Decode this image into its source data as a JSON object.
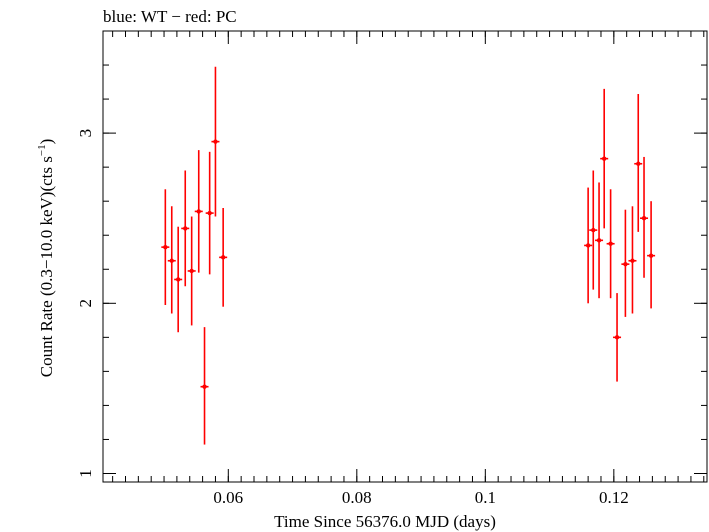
{
  "chart_data": {
    "type": "scatter",
    "title": "blue: WT − red: PC",
    "xlabel": "Time Since 56376.0 MJD (days)",
    "ylabel_main": "Count Rate (0.3−10.0 keV)(cts s",
    "ylabel_sup": "−1",
    "ylabel_end": ")",
    "xlim": [
      0.0405,
      0.1345
    ],
    "ylim": [
      0.95,
      3.6
    ],
    "x_ticks": [
      {
        "value": 0.06,
        "label": "0.06"
      },
      {
        "value": 0.08,
        "label": "0.08"
      },
      {
        "value": 0.1,
        "label": "0.1"
      },
      {
        "value": 0.12,
        "label": "0.12"
      }
    ],
    "x_minor_step": 0.002,
    "y_ticks": [
      {
        "value": 1,
        "label": "1"
      },
      {
        "value": 2,
        "label": "2"
      },
      {
        "value": 3,
        "label": "3"
      }
    ],
    "y_minor_step": 0.2,
    "legend": "title",
    "series": [
      {
        "name": "PC",
        "color": "#ff0000",
        "points": [
          {
            "x": 0.0502,
            "y": 2.33,
            "ylo": 1.99,
            "yhi": 2.67
          },
          {
            "x": 0.0512,
            "y": 2.25,
            "ylo": 1.94,
            "yhi": 2.57
          },
          {
            "x": 0.0522,
            "y": 2.14,
            "ylo": 1.83,
            "yhi": 2.45
          },
          {
            "x": 0.0533,
            "y": 2.44,
            "ylo": 2.1,
            "yhi": 2.78
          },
          {
            "x": 0.0543,
            "y": 2.19,
            "ylo": 1.87,
            "yhi": 2.51
          },
          {
            "x": 0.0554,
            "y": 2.54,
            "ylo": 2.18,
            "yhi": 2.9
          },
          {
            "x": 0.0563,
            "y": 1.51,
            "ylo": 1.17,
            "yhi": 1.86
          },
          {
            "x": 0.0571,
            "y": 2.53,
            "ylo": 2.17,
            "yhi": 2.89
          },
          {
            "x": 0.058,
            "y": 2.95,
            "ylo": 2.51,
            "yhi": 3.39
          },
          {
            "x": 0.0592,
            "y": 2.27,
            "ylo": 1.98,
            "yhi": 2.56
          },
          {
            "x": 0.116,
            "y": 2.34,
            "ylo": 2.0,
            "yhi": 2.68
          },
          {
            "x": 0.1168,
            "y": 2.43,
            "ylo": 2.08,
            "yhi": 2.78
          },
          {
            "x": 0.1177,
            "y": 2.37,
            "ylo": 2.03,
            "yhi": 2.71
          },
          {
            "x": 0.1185,
            "y": 2.85,
            "ylo": 2.44,
            "yhi": 3.26
          },
          {
            "x": 0.1195,
            "y": 2.35,
            "ylo": 2.03,
            "yhi": 2.67
          },
          {
            "x": 0.1205,
            "y": 1.8,
            "ylo": 1.54,
            "yhi": 2.06
          },
          {
            "x": 0.1218,
            "y": 2.23,
            "ylo": 1.92,
            "yhi": 2.55
          },
          {
            "x": 0.1229,
            "y": 2.25,
            "ylo": 1.94,
            "yhi": 2.57
          },
          {
            "x": 0.1238,
            "y": 2.82,
            "ylo": 2.42,
            "yhi": 3.23
          },
          {
            "x": 0.1247,
            "y": 2.5,
            "ylo": 2.15,
            "yhi": 2.86
          },
          {
            "x": 0.1258,
            "y": 2.28,
            "ylo": 1.97,
            "yhi": 2.6
          }
        ]
      }
    ]
  }
}
